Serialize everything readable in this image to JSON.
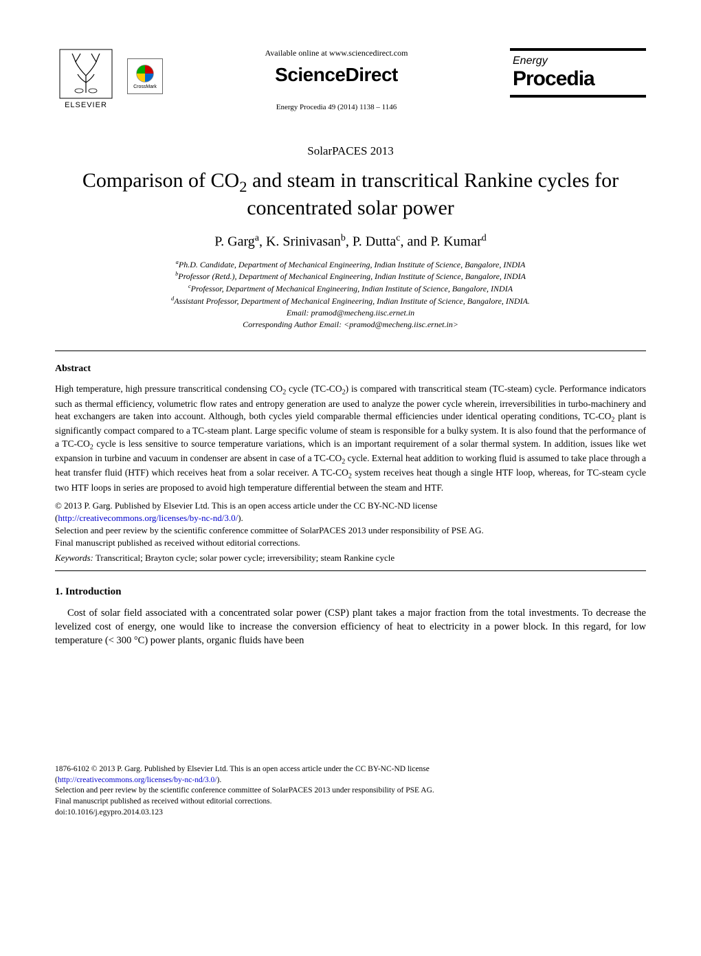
{
  "header": {
    "elsevier_label": "ELSEVIER",
    "crossmark_label": "CrossMark",
    "available_online": "Available online at www.sciencedirect.com",
    "sciencedirect": "ScienceDirect",
    "citation": "Energy Procedia 49 (2014) 1138 – 1146",
    "journal_line1": "Energy",
    "journal_line2": "Procedia"
  },
  "conference": "SolarPACES 2013",
  "title_html": "Comparison of CO<sub>2</sub> and steam in transcritical Rankine cycles for concentrated solar power",
  "authors_html": "P. Garg<sup>a</sup>, K. Srinivasan<sup>b</sup>, P. Dutta<sup>c</sup>, and P. Kumar<sup>d</sup>",
  "affiliations": {
    "a": "Ph.D. Candidate, Department of Mechanical Engineering, Indian Institute of Science, Bangalore, INDIA",
    "b": "Professor (Retd.), Department of Mechanical Engineering, Indian Institute of Science, Bangalore, INDIA",
    "c": "Professor, Department of Mechanical Engineering, Indian Institute of Science, Bangalore, INDIA",
    "d": "Assistant Professor, Department of Mechanical Engineering, Indian Institute of Science, Bangalore, INDIA.",
    "email": "Email: pramod@mecheng.iisc.ernet.in",
    "corresponding": "Corresponding Author Email: <pramod@mecheng.iisc.ernet.in>"
  },
  "abstract": {
    "heading": "Abstract",
    "body_html": "High temperature, high pressure transcritical condensing CO<sub>2</sub> cycle (TC-CO<sub>2</sub>) is compared with transcritical steam (TC-steam) cycle. Performance indicators such as thermal efficiency, volumetric flow rates and entropy generation are used to analyze the power cycle wherein, irreversibilities in turbo-machinery and heat exchangers are taken into account. Although, both cycles yield comparable thermal efficiencies under identical operating conditions, TC-CO<sub>2</sub> plant is significantly compact compared to a TC-steam plant. Large specific volume of steam is responsible for a bulky system. It is also found that the performance of a TC-CO<sub>2</sub> cycle is less sensitive to source temperature variations, which is an important requirement of a solar thermal system. In addition, issues like wet expansion in turbine and vacuum in condenser are absent in case of a TC-CO<sub>2</sub> cycle. External heat addition to working fluid is assumed to take place through a heat transfer fluid (HTF) which receives heat from a solar receiver. A TC-CO<sub>2</sub> system receives heat though a single HTF loop, whereas, for TC-steam cycle two HTF loops in series are proposed to avoid high temperature differential between the steam and HTF."
  },
  "copyright": {
    "line1": "© 2013 P. Garg. Published by Elsevier Ltd. This is an open access article under the CC BY-NC-ND license",
    "license_url": "http://creativecommons.org/licenses/by-nc-nd/3.0/",
    "line2": "Selection and peer review by the scientific conference committee of SolarPACES 2013 under responsibility of PSE AG.",
    "line3": "Final manuscript published as received without editorial corrections."
  },
  "keywords": {
    "label": "Keywords:",
    "text": " Transcritical; Brayton cycle; solar power cycle; irreversibility; steam Rankine cycle"
  },
  "section1": {
    "heading": "1. Introduction",
    "body": "Cost of solar field associated with a concentrated solar power (CSP) plant takes a major fraction from the total investments. To decrease the levelized cost of energy, one would like to increase the conversion efficiency of heat to electricity in a power block. In this regard, for low temperature (< 300 °C) power plants, organic fluids have been"
  },
  "footer": {
    "line1": "1876-6102 © 2013 P. Garg. Published by Elsevier Ltd. This is an open access article under the CC BY-NC-ND license",
    "license_url": "http://creativecommons.org/licenses/by-nc-nd/3.0/",
    "line2": "Selection and peer review by the scientific conference committee of SolarPACES 2013 under responsibility of PSE AG.",
    "line3": "Final manuscript published as received without editorial corrections.",
    "doi": "doi:10.1016/j.egypro.2014.03.123"
  },
  "colors": {
    "text": "#000000",
    "link": "#0000cc",
    "background": "#ffffff",
    "rule": "#000000"
  }
}
